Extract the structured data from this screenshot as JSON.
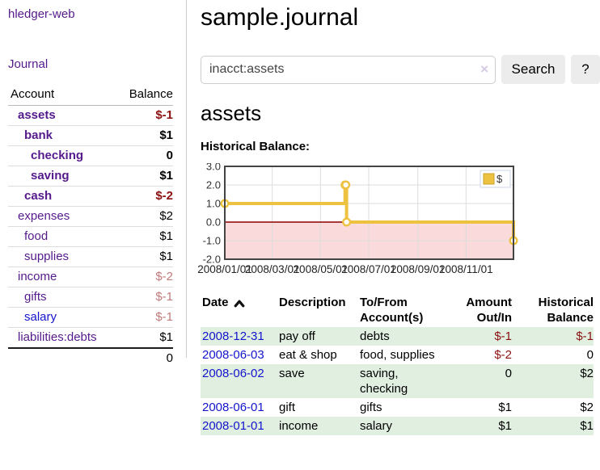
{
  "app": {
    "brand": "hledger-web"
  },
  "sidebar": {
    "journal_label": "Journal",
    "accounts": {
      "header_account": "Account",
      "header_balance": "Balance",
      "rows": [
        {
          "account": "assets",
          "balance": "$-1",
          "level": 1,
          "bold": true,
          "tone": "neg-strong"
        },
        {
          "account": "bank",
          "balance": "$1",
          "level": 2,
          "bold": true,
          "tone": ""
        },
        {
          "account": "checking",
          "balance": "0",
          "level": 3,
          "bold": true,
          "tone": ""
        },
        {
          "account": "saving",
          "balance": "$1",
          "level": 3,
          "bold": true,
          "tone": ""
        },
        {
          "account": "cash",
          "balance": "$-2",
          "level": 2,
          "bold": true,
          "tone": "neg-strong"
        },
        {
          "account": "expenses",
          "balance": "$2",
          "level": 1,
          "bold": false,
          "tone": ""
        },
        {
          "account": "food",
          "balance": "$1",
          "level": 2,
          "bold": false,
          "tone": ""
        },
        {
          "account": "supplies",
          "balance": "$1",
          "level": 2,
          "bold": false,
          "tone": ""
        },
        {
          "account": "income",
          "balance": "$-2",
          "level": 1,
          "bold": false,
          "tone": "neg-muted"
        },
        {
          "account": "gifts",
          "balance": "$-1",
          "level": 2,
          "bold": false,
          "tone": "neg-muted"
        },
        {
          "account": "salary",
          "balance": "$-1",
          "level": 2,
          "bold": false,
          "tone": "neg-muted",
          "link_color": "blue"
        },
        {
          "account": "liabilities:debts",
          "balance": "$1",
          "level": 1,
          "bold": false,
          "tone": ""
        }
      ],
      "total": "0"
    }
  },
  "main": {
    "title": "sample.journal",
    "search": {
      "value": "inacct:assets",
      "clear_icon": "×",
      "button_label": "Search",
      "help_label": "?"
    },
    "account_heading": "assets",
    "chart_title": "Historical Balance:"
  },
  "chart_data": {
    "type": "line",
    "step": true,
    "title": "Historical Balance:",
    "series": [
      {
        "name": "$",
        "color": "#edc240",
        "points": [
          [
            "2008-01-01",
            1
          ],
          [
            "2008-06-01",
            2
          ],
          [
            "2008-06-02",
            2
          ],
          [
            "2008-06-03",
            0
          ],
          [
            "2008-12-31",
            -1
          ]
        ]
      }
    ],
    "x_range": [
      "2008-01-01",
      "2008-12-31"
    ],
    "ylim": [
      -2,
      3
    ],
    "y_ticks": [
      "3.0",
      "2.0",
      "1.0",
      "0.0",
      "-1.0",
      "-2.0"
    ],
    "x_ticks": [
      {
        "date": "2008-01-01",
        "label": "2008/01/01"
      },
      {
        "date": "2008-03-01",
        "label": "2008/03/01"
      },
      {
        "date": "2008-05-01",
        "label": "2008/05/01"
      },
      {
        "date": "2008-07-01",
        "label": "2008/07/01"
      },
      {
        "date": "2008-09-01",
        "label": "2008/09/01"
      },
      {
        "date": "2008-11-01",
        "label": "2008/11/01"
      }
    ],
    "grid": true,
    "border_color": "#444444",
    "grid_color": "#dddddd",
    "zero_line_color": "#8b0000",
    "negative_fill": "#fadada",
    "legend": {
      "position": "top-right",
      "label": "$"
    }
  },
  "register": {
    "headers": [
      {
        "line1": "Date",
        "line2": "",
        "sort": "asc"
      },
      {
        "line1": "Description",
        "line2": ""
      },
      {
        "line1": "To/From",
        "line2": "Account(s)"
      },
      {
        "line1": "Amount",
        "line2": "Out/In"
      },
      {
        "line1": "Historical",
        "line2": "Balance"
      }
    ],
    "rows": [
      {
        "date": "2008-12-31",
        "description": "pay off",
        "accounts": "debts",
        "amount": "$-1",
        "amount_tone": "neg-strong",
        "balance": "$-1",
        "balance_tone": "neg-strong"
      },
      {
        "date": "2008-06-03",
        "description": "eat & shop",
        "accounts": "food, supplies",
        "amount": "$-2",
        "amount_tone": "neg-strong",
        "balance": "0",
        "balance_tone": ""
      },
      {
        "date": "2008-06-02",
        "description": "save",
        "accounts": "saving, checking",
        "amount": "0",
        "amount_tone": "",
        "balance": "$2",
        "balance_tone": ""
      },
      {
        "date": "2008-06-01",
        "description": "gift",
        "accounts": "gifts",
        "amount": "$1",
        "amount_tone": "",
        "balance": "$2",
        "balance_tone": ""
      },
      {
        "date": "2008-01-01",
        "description": "income",
        "accounts": "salary",
        "amount": "$1",
        "amount_tone": "",
        "balance": "$1",
        "balance_tone": ""
      }
    ]
  }
}
